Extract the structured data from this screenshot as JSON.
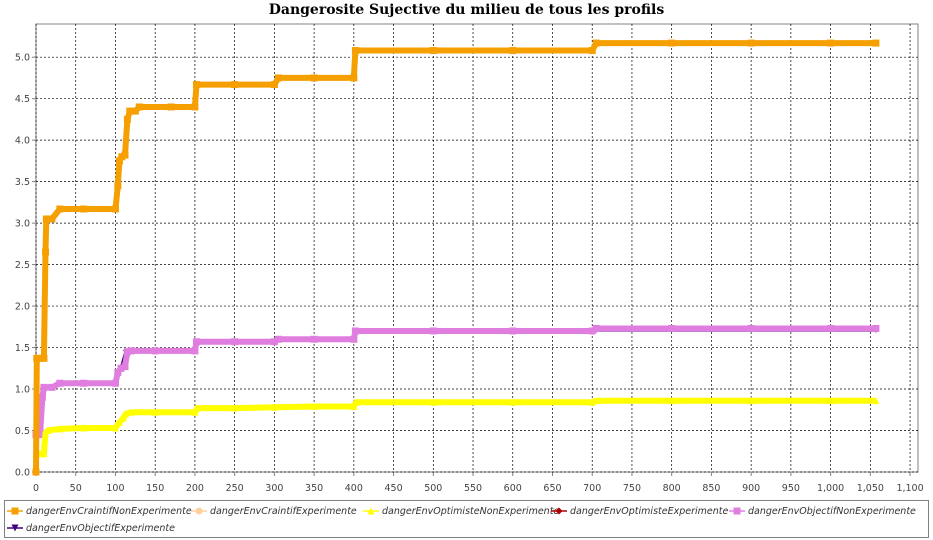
{
  "chart_data": {
    "type": "line",
    "title": "Dangerosite Sujective du milieu de tous les profils",
    "xlabel": "",
    "ylabel": "",
    "xlim": [
      0,
      1110
    ],
    "ylim": [
      0,
      5.4
    ],
    "x_ticks": [
      "0",
      "50",
      "100",
      "150",
      "200",
      "250",
      "300",
      "350",
      "400",
      "450",
      "500",
      "550",
      "600",
      "650",
      "700",
      "750",
      "800",
      "850",
      "900",
      "950",
      "1,000",
      "1,050",
      "1,100"
    ],
    "y_ticks": [
      "0.0",
      "0.5",
      "1.0",
      "1.5",
      "2.0",
      "2.5",
      "3.0",
      "3.5",
      "4.0",
      "4.5",
      "5.0"
    ],
    "grid": true,
    "legend_position": "bottom",
    "series": [
      {
        "name": "dangerEnvCraintifNonExperimente",
        "color": "#f5a000",
        "marker": "square",
        "points": [
          [
            0,
            0
          ],
          [
            1,
            1.37
          ],
          [
            5,
            1.37
          ],
          [
            10,
            1.37
          ],
          [
            12,
            2.65
          ],
          [
            13,
            3.05
          ],
          [
            20,
            3.05
          ],
          [
            30,
            3.17
          ],
          [
            60,
            3.17
          ],
          [
            100,
            3.17
          ],
          [
            103,
            3.45
          ],
          [
            105,
            3.75
          ],
          [
            108,
            3.8
          ],
          [
            112,
            3.82
          ],
          [
            115,
            4.25
          ],
          [
            118,
            4.35
          ],
          [
            125,
            4.35
          ],
          [
            130,
            4.4
          ],
          [
            170,
            4.4
          ],
          [
            200,
            4.4
          ],
          [
            202,
            4.67
          ],
          [
            250,
            4.67
          ],
          [
            300,
            4.67
          ],
          [
            305,
            4.75
          ],
          [
            350,
            4.75
          ],
          [
            400,
            4.75
          ],
          [
            402,
            5.08
          ],
          [
            500,
            5.08
          ],
          [
            600,
            5.08
          ],
          [
            700,
            5.08
          ],
          [
            705,
            5.17
          ],
          [
            800,
            5.17
          ],
          [
            900,
            5.17
          ],
          [
            1000,
            5.17
          ],
          [
            1057,
            5.17
          ]
        ]
      },
      {
        "name": "dangerEnvCraintifExperimente",
        "color": "#ffd0a0",
        "marker": "circle",
        "points": []
      },
      {
        "name": "dangerEnvOptimisteNonExperimente",
        "color": "#ffff00",
        "marker": "triangle-up",
        "points": [
          [
            0,
            0.22
          ],
          [
            5,
            0.22
          ],
          [
            10,
            0.22
          ],
          [
            12,
            0.47
          ],
          [
            15,
            0.5
          ],
          [
            30,
            0.52
          ],
          [
            60,
            0.53
          ],
          [
            100,
            0.53
          ],
          [
            105,
            0.6
          ],
          [
            110,
            0.65
          ],
          [
            113,
            0.7
          ],
          [
            120,
            0.72
          ],
          [
            150,
            0.72
          ],
          [
            200,
            0.72
          ],
          [
            203,
            0.77
          ],
          [
            250,
            0.77
          ],
          [
            300,
            0.78
          ],
          [
            350,
            0.79
          ],
          [
            400,
            0.79
          ],
          [
            403,
            0.84
          ],
          [
            500,
            0.84
          ],
          [
            600,
            0.84
          ],
          [
            700,
            0.84
          ],
          [
            705,
            0.86
          ],
          [
            800,
            0.86
          ],
          [
            900,
            0.86
          ],
          [
            1000,
            0.86
          ],
          [
            1057,
            0.86
          ]
        ]
      },
      {
        "name": "dangerEnvOptimisteExperimente",
        "color": "#b00000",
        "marker": "diamond",
        "points": []
      },
      {
        "name": "dangerEnvObjectifNonExperimente",
        "color": "#e07ee0",
        "marker": "square",
        "points": [
          [
            0,
            0.45
          ],
          [
            5,
            0.45
          ],
          [
            8,
            0.9
          ],
          [
            10,
            1.02
          ],
          [
            20,
            1.02
          ],
          [
            30,
            1.07
          ],
          [
            60,
            1.07
          ],
          [
            100,
            1.07
          ],
          [
            103,
            1.2
          ],
          [
            107,
            1.25
          ],
          [
            112,
            1.27
          ],
          [
            115,
            1.45
          ],
          [
            120,
            1.46
          ],
          [
            150,
            1.46
          ],
          [
            200,
            1.46
          ],
          [
            202,
            1.57
          ],
          [
            250,
            1.57
          ],
          [
            300,
            1.57
          ],
          [
            305,
            1.6
          ],
          [
            350,
            1.6
          ],
          [
            400,
            1.6
          ],
          [
            402,
            1.7
          ],
          [
            500,
            1.7
          ],
          [
            600,
            1.7
          ],
          [
            700,
            1.7
          ],
          [
            705,
            1.73
          ],
          [
            800,
            1.73
          ],
          [
            900,
            1.73
          ],
          [
            1000,
            1.73
          ],
          [
            1057,
            1.73
          ]
        ]
      },
      {
        "name": "dangerEnvObjectifExperimente",
        "color": "#400080",
        "marker": "triangle-down",
        "points": [
          [
            0,
            0.45
          ],
          [
            8,
            0.45
          ],
          [
            10,
            1.0
          ],
          [
            30,
            1.05
          ],
          [
            100,
            1.05
          ],
          [
            112,
            1.45
          ],
          [
            200,
            1.45
          ],
          [
            202,
            1.55
          ],
          [
            300,
            1.55
          ],
          [
            305,
            1.58
          ],
          [
            400,
            1.58
          ],
          [
            402,
            1.68
          ],
          [
            700,
            1.68
          ],
          [
            705,
            1.7
          ],
          [
            1057,
            1.7
          ]
        ]
      }
    ]
  }
}
